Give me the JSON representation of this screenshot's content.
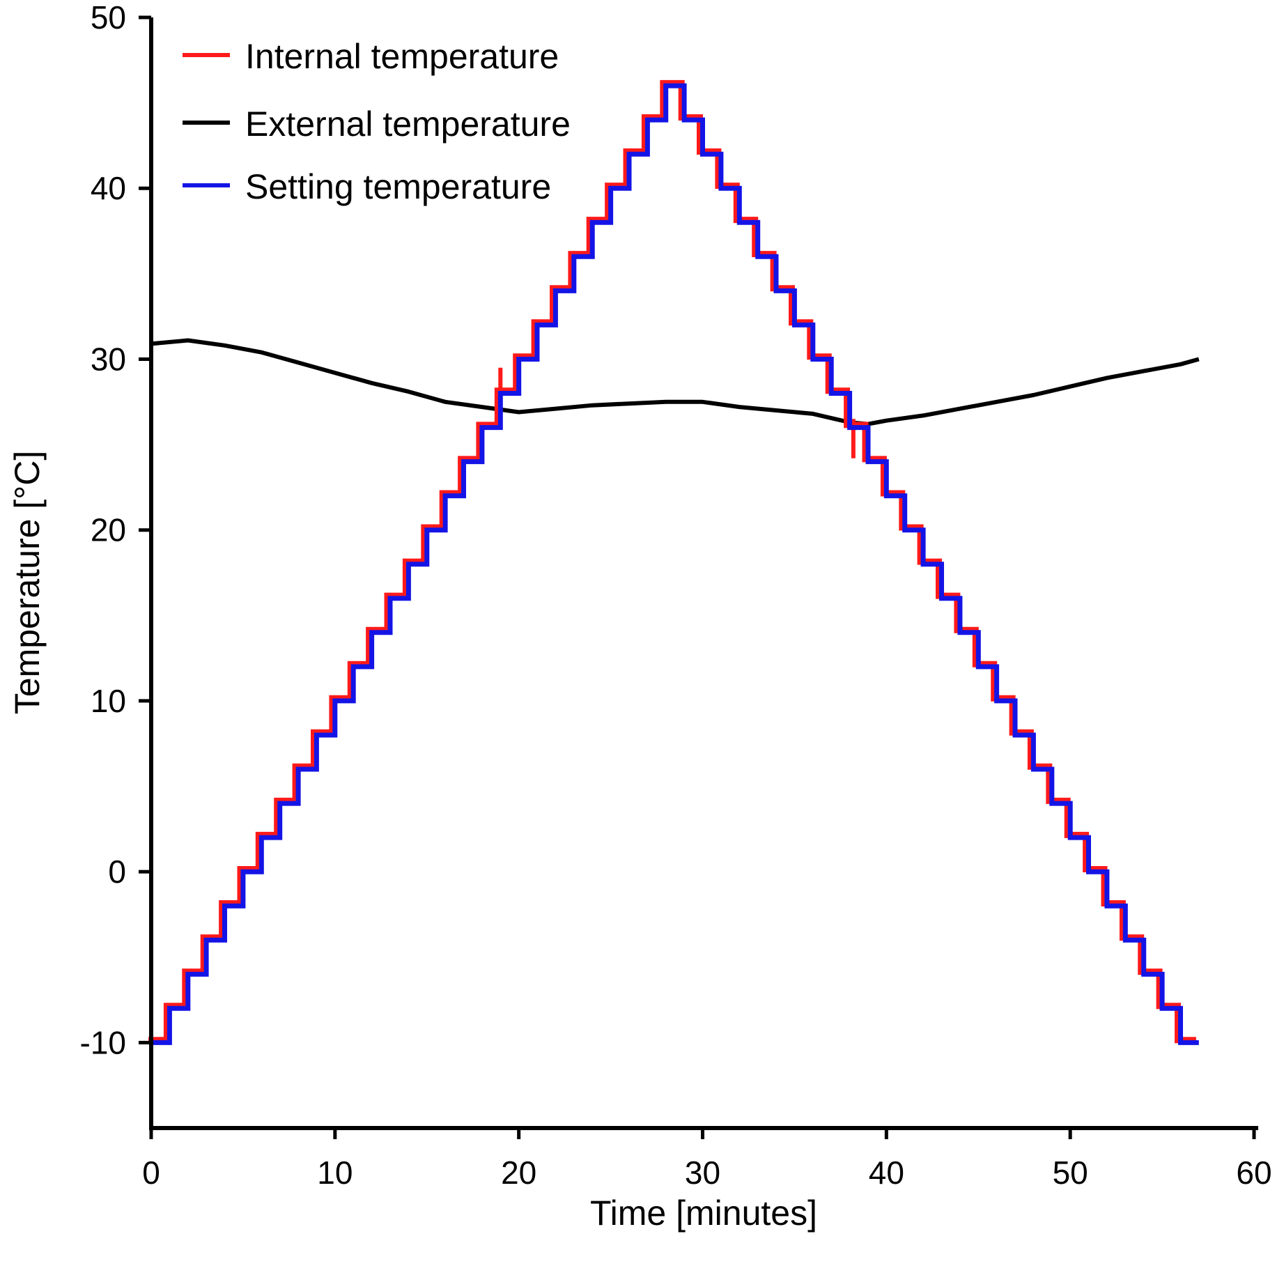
{
  "chart_data": {
    "type": "line",
    "title": "",
    "xlabel": "Time [minutes]",
    "ylabel": "Temperature [°C]",
    "xlim": [
      0,
      60
    ],
    "ylim": [
      -15,
      50
    ],
    "xticks": [
      0,
      10,
      20,
      30,
      40,
      50,
      60
    ],
    "yticks": [
      -10,
      0,
      10,
      20,
      30,
      40,
      50
    ],
    "grid": false,
    "legend_position": "top-left",
    "series": [
      {
        "name": "Internal temperature",
        "color": "#ff1a1a",
        "style": "staircase-noisy",
        "steps": {
          "start_temp": -10,
          "peak_temp": 46,
          "end_temp": -10,
          "step_size": 2,
          "step_minutes": 1,
          "end_minute": 57
        },
        "disturbances": [
          {
            "x": 19,
            "y": 29.5
          },
          {
            "x": 38.2,
            "y": 24.2
          }
        ]
      },
      {
        "name": "External temperature",
        "color": "#000000",
        "style": "smooth",
        "x": [
          0,
          2,
          4,
          6,
          8,
          10,
          12,
          14,
          16,
          18,
          20,
          22,
          24,
          26,
          28,
          30,
          32,
          34,
          36,
          38,
          39,
          40,
          42,
          44,
          46,
          48,
          50,
          52,
          54,
          56,
          57
        ],
        "y": [
          30.9,
          31.1,
          30.8,
          30.4,
          29.8,
          29.2,
          28.6,
          28.1,
          27.5,
          27.2,
          26.9,
          27.1,
          27.3,
          27.4,
          27.5,
          27.5,
          27.2,
          27.0,
          26.8,
          26.3,
          26.2,
          26.4,
          26.7,
          27.1,
          27.5,
          27.9,
          28.4,
          28.9,
          29.3,
          29.7,
          30.0
        ]
      },
      {
        "name": "Setting temperature",
        "color": "#1414e6",
        "style": "staircase",
        "steps": {
          "start_temp": -10,
          "peak_temp": 46,
          "end_temp": -10,
          "step_size": 2,
          "step_minutes": 1,
          "end_minute": 57
        }
      }
    ]
  }
}
